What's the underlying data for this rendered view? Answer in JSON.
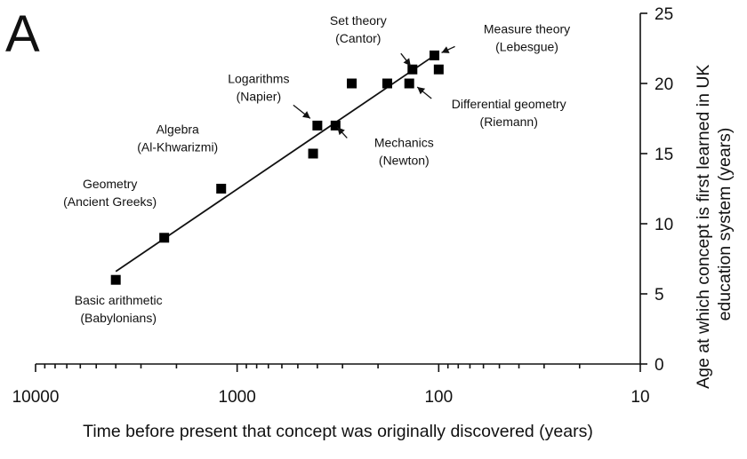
{
  "panel_label": "A",
  "chart_data": {
    "type": "scatter",
    "title": "",
    "xlabel": "Time before present that concept was originally discovered (years)",
    "ylabel": "Age at which concept is first learned in UK education system (years)",
    "ylabel_lines": [
      "Age at which concept is first learned in UK",
      "education system (years)"
    ],
    "x_scale": "log",
    "x_reversed": true,
    "xlim": [
      10000,
      10
    ],
    "ylim": [
      0,
      25
    ],
    "x_ticks": [
      {
        "value": 10000,
        "label": "10000"
      },
      {
        "value": 1000,
        "label": "1000"
      },
      {
        "value": 100,
        "label": "100"
      },
      {
        "value": 10,
        "label": "10"
      }
    ],
    "y_ticks": [
      {
        "value": 0,
        "label": "0"
      },
      {
        "value": 5,
        "label": "5"
      },
      {
        "value": 10,
        "label": "10"
      },
      {
        "value": 15,
        "label": "15"
      },
      {
        "value": 20,
        "label": "20"
      },
      {
        "value": 25,
        "label": "25"
      }
    ],
    "points": [
      {
        "x": 4000,
        "y": 6
      },
      {
        "x": 2300,
        "y": 9
      },
      {
        "x": 1200,
        "y": 12.5
      },
      {
        "x": 420,
        "y": 15
      },
      {
        "x": 400,
        "y": 17
      },
      {
        "x": 325,
        "y": 17
      },
      {
        "x": 270,
        "y": 20
      },
      {
        "x": 180,
        "y": 20
      },
      {
        "x": 140,
        "y": 20
      },
      {
        "x": 135,
        "y": 21
      },
      {
        "x": 105,
        "y": 22
      },
      {
        "x": 100,
        "y": 21
      }
    ],
    "fit_line": {
      "x": [
        4000,
        110
      ],
      "y": [
        6.6,
        21.8
      ]
    },
    "annotations": [
      {
        "lines": [
          "Basic arithmetic",
          "(Babylonians)"
        ],
        "target": {
          "x": 4000,
          "y": 6
        }
      },
      {
        "lines": [
          "Geometry",
          "(Ancient Greeks)"
        ],
        "target": {
          "x": 2300,
          "y": 9
        }
      },
      {
        "lines": [
          "Algebra",
          "(Al-Khwarizmi)"
        ],
        "target": {
          "x": 1200,
          "y": 12.5
        }
      },
      {
        "lines": [
          "Logarithms",
          "(Napier)"
        ],
        "target": {
          "x": 400,
          "y": 17
        },
        "arrow": true
      },
      {
        "lines": [
          "Mechanics",
          "(Newton)"
        ],
        "target": {
          "x": 325,
          "y": 17
        },
        "arrow": true
      },
      {
        "lines": [
          "Set theory",
          "(Cantor)"
        ],
        "target": {
          "x": 135,
          "y": 21
        },
        "arrow": true
      },
      {
        "lines": [
          "Measure theory",
          "(Lebesgue)"
        ],
        "target": {
          "x": 105,
          "y": 22
        },
        "arrow": true
      },
      {
        "lines": [
          "Differential geometry",
          "(Riemann)"
        ],
        "target": {
          "x": 140,
          "y": 20
        },
        "arrow": true
      }
    ],
    "legend": "none",
    "grid": false
  }
}
